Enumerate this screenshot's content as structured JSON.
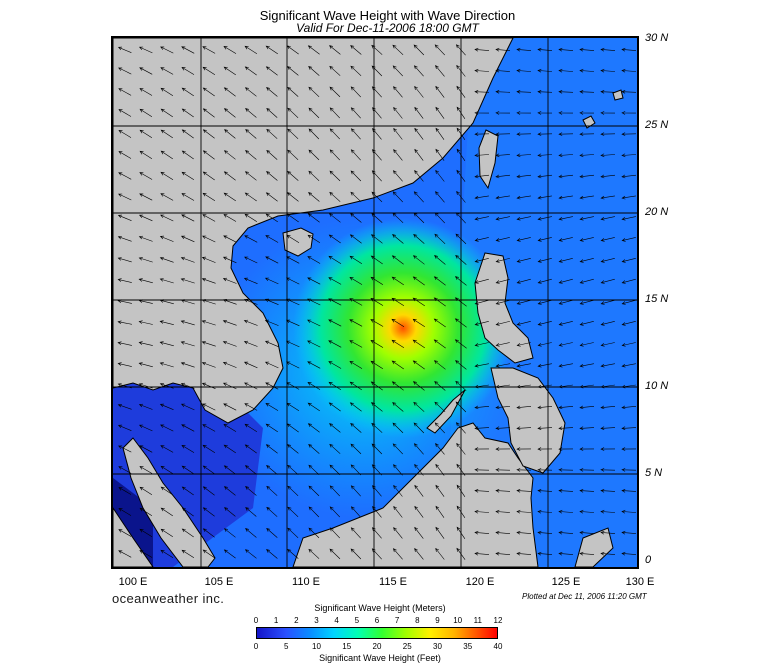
{
  "title": "Significant Wave Height with Wave Direction",
  "subtitle": "Valid For Dec-11-2006 18:00 GMT",
  "lat_labels": [
    "30 N",
    "25 N",
    "20 N",
    "15 N",
    "10 N",
    "5 N",
    "0"
  ],
  "lon_labels": [
    "100 E",
    "105 E",
    "110 E",
    "115 E",
    "120 E",
    "125 E",
    "130 E"
  ],
  "brand": "oceanweather inc.",
  "plotted": "Plotted at Dec 11, 2006 11:20 GMT",
  "colorbar": {
    "title_meters": "Significant Wave Height (Meters)",
    "title_feet": "Significant Wave Height (Feet)",
    "ticks_meters": [
      "0",
      "1",
      "2",
      "3",
      "4",
      "5",
      "6",
      "7",
      "8",
      "9",
      "10",
      "11",
      "12"
    ],
    "ticks_feet": [
      "0",
      "5",
      "10",
      "15",
      "20",
      "25",
      "30",
      "35",
      "40"
    ]
  },
  "colors": {
    "land": "#c4c4c4",
    "deep_blue": "#1414c8",
    "peak": "#ff0000"
  }
}
